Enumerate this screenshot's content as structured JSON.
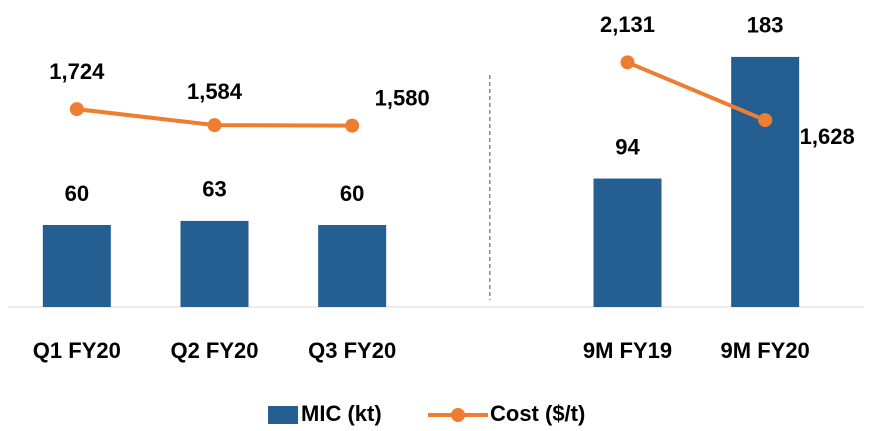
{
  "chart_data": {
    "type": "bar-line",
    "categories": [
      "Q1 FY20",
      "Q2 FY20",
      "Q3 FY20",
      null,
      "9M FY19",
      "9M FY20"
    ],
    "series": [
      {
        "name": "MIC (kt)",
        "type": "bar",
        "color": "#255e91",
        "values": [
          60,
          63,
          60,
          null,
          94,
          183
        ]
      },
      {
        "name": "Cost ($/t)",
        "type": "line",
        "axis": "y2",
        "color": "#ed7d31",
        "values": [
          1724,
          1584,
          1580,
          null,
          2131,
          1628
        ],
        "value_labels": [
          "1,724",
          "1,584",
          "1,580",
          null,
          "2,131",
          "1,628"
        ]
      }
    ],
    "ylim": [
      0,
      210
    ],
    "y2lim": [
      0,
      2500
    ],
    "legend": "bottom"
  }
}
